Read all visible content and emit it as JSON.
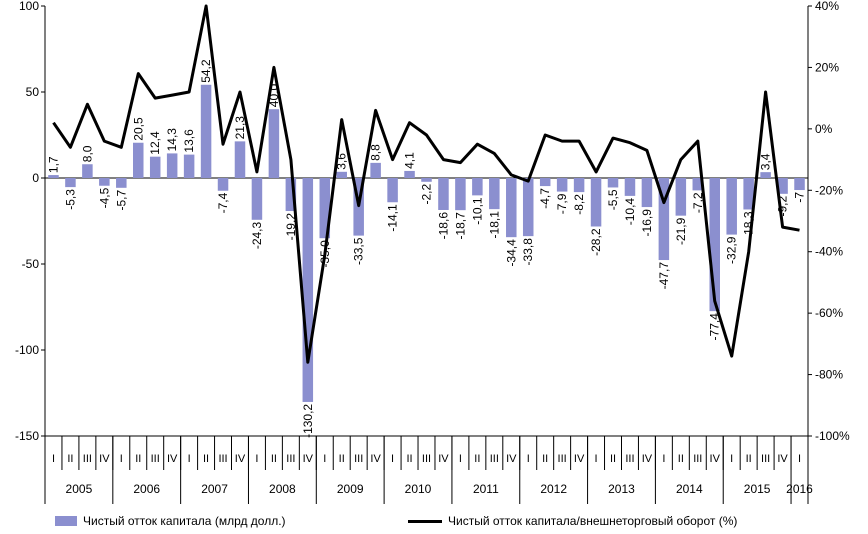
{
  "chart_data": {
    "type": "bar+line",
    "title": "",
    "categories": [
      "2005 I",
      "2005 II",
      "2005 III",
      "2005 IV",
      "2006 I",
      "2006 II",
      "2006 III",
      "2006 IV",
      "2007 I",
      "2007 II",
      "2007 III",
      "2007 IV",
      "2008 I",
      "2008 II",
      "2008 III",
      "2008 IV",
      "2009 I",
      "2009 II",
      "2009 III",
      "2009 IV",
      "2010 I",
      "2010 II",
      "2010 III",
      "2010 IV",
      "2011 I",
      "2011 II",
      "2011 III",
      "2011 IV",
      "2012 I",
      "2012 II",
      "2012 III",
      "2012 IV",
      "2013 I",
      "2013 II",
      "2013 III",
      "2013 IV",
      "2014 I",
      "2014 II",
      "2014 III",
      "2014 IV",
      "2015 I",
      "2015 II",
      "2015 III",
      "2015 IV",
      "2016 I"
    ],
    "quarter_labels": [
      "I",
      "II",
      "III",
      "IV",
      "I",
      "II",
      "III",
      "IV",
      "I",
      "II",
      "III",
      "IV",
      "I",
      "II",
      "III",
      "IV",
      "I",
      "II",
      "III",
      "IV",
      "I",
      "II",
      "III",
      "IV",
      "I",
      "II",
      "III",
      "IV",
      "I",
      "II",
      "III",
      "IV",
      "I",
      "II",
      "III",
      "IV",
      "I",
      "II",
      "III",
      "IV",
      "I",
      "II",
      "III",
      "IV",
      "I"
    ],
    "years": [
      {
        "label": "2005",
        "start": 0,
        "end": 3
      },
      {
        "label": "2006",
        "start": 4,
        "end": 7
      },
      {
        "label": "2007",
        "start": 8,
        "end": 11
      },
      {
        "label": "2008",
        "start": 12,
        "end": 15
      },
      {
        "label": "2009",
        "start": 16,
        "end": 19
      },
      {
        "label": "2010",
        "start": 20,
        "end": 23
      },
      {
        "label": "2011",
        "start": 24,
        "end": 27
      },
      {
        "label": "2012",
        "start": 28,
        "end": 31
      },
      {
        "label": "2013",
        "start": 32,
        "end": 35
      },
      {
        "label": "2014",
        "start": 36,
        "end": 39
      },
      {
        "label": "2015",
        "start": 40,
        "end": 43
      },
      {
        "label": "2016",
        "start": 44,
        "end": 44
      }
    ],
    "series": [
      {
        "name": "Чистый отток капитала (млрд  долл.)",
        "type": "bar",
        "axis": "left",
        "color": "#8b8fcf",
        "values": [
          1.7,
          -5.3,
          8.0,
          -4.5,
          -5.7,
          20.5,
          12.4,
          14.3,
          13.6,
          54.2,
          -7.4,
          21.3,
          -24.3,
          40.0,
          -19.2,
          -130.2,
          -35.0,
          3.6,
          -33.5,
          8.8,
          -14.1,
          4.1,
          -2.2,
          -18.6,
          -18.7,
          -10.1,
          -18.1,
          -34.4,
          -33.8,
          -4.7,
          -7.9,
          -8.2,
          -28.2,
          -5.5,
          -10.4,
          -16.9,
          -47.7,
          -21.9,
          -7.2,
          -77.4,
          -32.9,
          -18.3,
          3.4,
          -9.2,
          -7.0
        ],
        "labels": [
          "1,7",
          "-5,3",
          "8,0",
          "-4,5",
          "-5,7",
          "20,5",
          "12,4",
          "14,3",
          "13,6",
          "54,2",
          "-7,4",
          "21,3",
          "-24,3",
          "40,0",
          "-19,2",
          "-130,2",
          "-35,0",
          "3,6",
          "-33,5",
          "8,8",
          "-14,1",
          "4,1",
          "-2,2",
          "-18,6",
          "-18,7",
          "-10,1",
          "-18,1",
          "-34,4",
          "-33,8",
          "-4,7",
          "-7,9",
          "-8,2",
          "-28,2",
          "-5,5",
          "-10,4",
          "-16,9",
          "-47,7",
          "-21,9",
          "-7,2",
          "-77,4",
          "-32,9",
          "-18,3",
          "3,4",
          "-9,2",
          "-7"
        ]
      },
      {
        "name": "Чистый отток капитала/внешнеторговый оборот (%)",
        "type": "line",
        "axis": "right",
        "color": "#000000",
        "values": [
          2,
          -6,
          8,
          -4,
          -6,
          18,
          10,
          11,
          12,
          40,
          -5,
          12,
          -14,
          20,
          -10,
          -76,
          -41,
          3,
          -25,
          6,
          -10,
          2,
          -2,
          -10,
          -11,
          -5,
          -8,
          -15,
          -17,
          -2,
          -4,
          -4,
          -14,
          -3,
          -4.5,
          -7,
          -24,
          -10,
          -4,
          -56,
          -74,
          -40,
          12,
          -32,
          -33
        ]
      }
    ],
    "y_left": {
      "min": -150,
      "max": 100,
      "ticks": [
        -150,
        -100,
        -50,
        0,
        50,
        100
      ],
      "tick_labels": [
        "-150",
        "-100",
        "-50",
        "0",
        "50",
        "100"
      ]
    },
    "y_right": {
      "min": -100,
      "max": 40,
      "ticks": [
        -100,
        -80,
        -60,
        -40,
        -20,
        0,
        20,
        40
      ],
      "tick_labels": [
        "-100%",
        "-80%",
        "-60%",
        "-40%",
        "-20%",
        "0%",
        "20%",
        "40%"
      ]
    },
    "xlabel": "",
    "ylabel": "",
    "legend_position": "bottom",
    "legend": [
      {
        "label": "Чистый отток капитала (млрд  долл.)",
        "kind": "bar"
      },
      {
        "label": "Чистый отток капитала/внешнеторговый оборот (%)",
        "kind": "line"
      }
    ]
  }
}
